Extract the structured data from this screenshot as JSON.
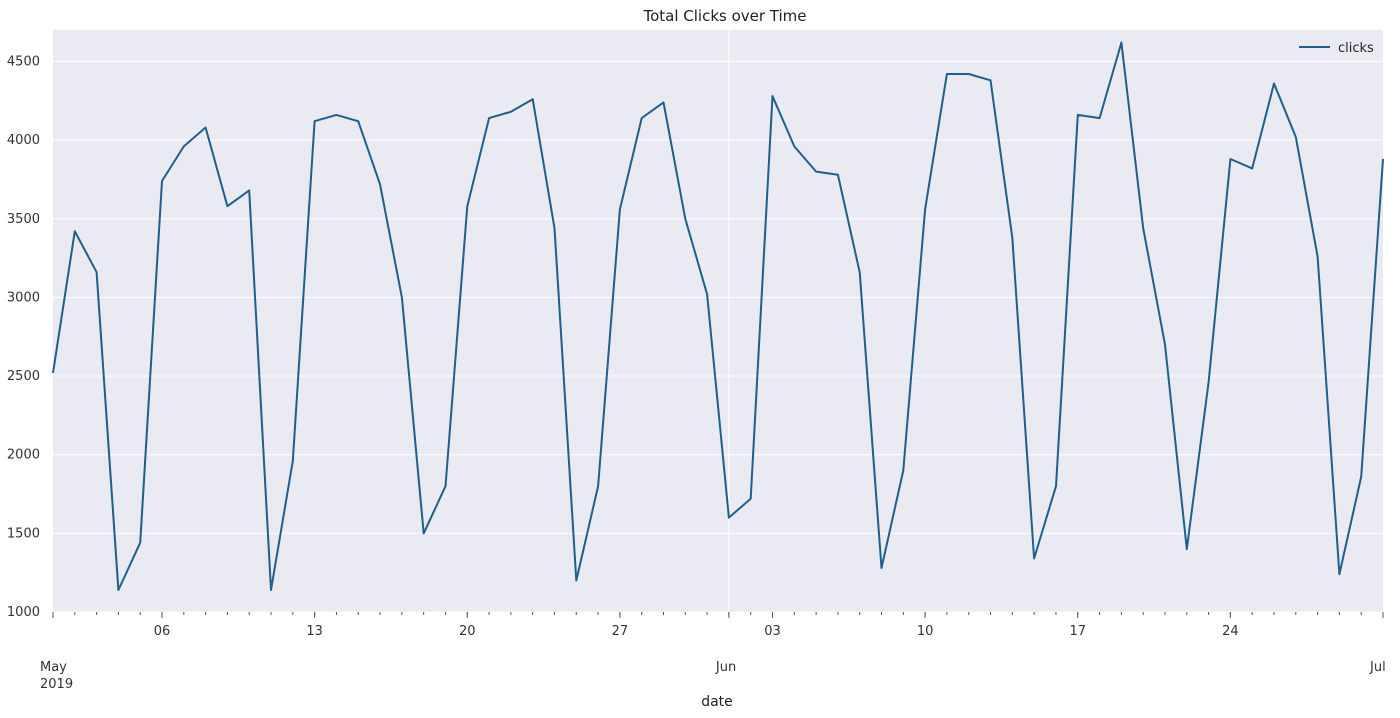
{
  "chart_data": {
    "type": "line",
    "title": "Total Clicks over Time",
    "xlabel": "date",
    "ylabel": "",
    "x_range": [
      "2019-05-01",
      "2019-07-01"
    ],
    "ylim": [
      1000,
      4700
    ],
    "grid": true,
    "legend": "top-right",
    "line_color": "#1f5f8b",
    "background_color": "#eaeaf2",
    "y_ticks": [
      1000,
      1500,
      2000,
      2500,
      3000,
      3500,
      4000,
      4500
    ],
    "x_ticks": [
      {
        "date": "2019-05-01",
        "label": "May",
        "sublabel": "2019",
        "major": true
      },
      {
        "date": "2019-05-06",
        "label": "06",
        "major": false
      },
      {
        "date": "2019-05-13",
        "label": "13",
        "major": false
      },
      {
        "date": "2019-05-20",
        "label": "20",
        "major": false
      },
      {
        "date": "2019-05-27",
        "label": "27",
        "major": false
      },
      {
        "date": "2019-06-01",
        "label": "Jun",
        "major": true
      },
      {
        "date": "2019-06-03",
        "label": "03",
        "major": false
      },
      {
        "date": "2019-06-10",
        "label": "10",
        "major": false
      },
      {
        "date": "2019-06-17",
        "label": "17",
        "major": false
      },
      {
        "date": "2019-06-24",
        "label": "24",
        "major": false
      },
      {
        "date": "2019-07-01",
        "label": "Jul",
        "major": true
      }
    ],
    "series": [
      {
        "name": "clicks",
        "x": [
          "2019-05-01",
          "2019-05-02",
          "2019-05-03",
          "2019-05-04",
          "2019-05-05",
          "2019-05-06",
          "2019-05-07",
          "2019-05-08",
          "2019-05-09",
          "2019-05-10",
          "2019-05-11",
          "2019-05-12",
          "2019-05-13",
          "2019-05-14",
          "2019-05-15",
          "2019-05-16",
          "2019-05-17",
          "2019-05-18",
          "2019-05-19",
          "2019-05-20",
          "2019-05-21",
          "2019-05-22",
          "2019-05-23",
          "2019-05-24",
          "2019-05-25",
          "2019-05-26",
          "2019-05-27",
          "2019-05-28",
          "2019-05-29",
          "2019-05-30",
          "2019-05-31",
          "2019-06-01",
          "2019-06-02",
          "2019-06-03",
          "2019-06-04",
          "2019-06-05",
          "2019-06-06",
          "2019-06-07",
          "2019-06-08",
          "2019-06-09",
          "2019-06-10",
          "2019-06-11",
          "2019-06-12",
          "2019-06-13",
          "2019-06-14",
          "2019-06-15",
          "2019-06-16",
          "2019-06-17",
          "2019-06-18",
          "2019-06-19",
          "2019-06-20",
          "2019-06-21",
          "2019-06-22",
          "2019-06-23",
          "2019-06-24",
          "2019-06-25",
          "2019-06-26",
          "2019-06-27",
          "2019-06-28",
          "2019-06-29",
          "2019-06-30",
          "2019-07-01"
        ],
        "values": [
          2520,
          3420,
          3160,
          1140,
          1440,
          3740,
          3960,
          4080,
          3580,
          3680,
          1140,
          1960,
          4120,
          4160,
          4120,
          3720,
          3000,
          1500,
          1800,
          3580,
          4140,
          4180,
          4260,
          3440,
          1200,
          1800,
          3560,
          4140,
          4240,
          3500,
          3020,
          1600,
          1720,
          4280,
          3960,
          3800,
          3780,
          3160,
          1280,
          1900,
          3560,
          4420,
          4420,
          4380,
          3380,
          1340,
          1800,
          4160,
          4140,
          4620,
          3440,
          2700,
          1400,
          2460,
          3880,
          3820,
          4360,
          4020,
          3260,
          1240,
          1860,
          3880
        ]
      }
    ]
  }
}
